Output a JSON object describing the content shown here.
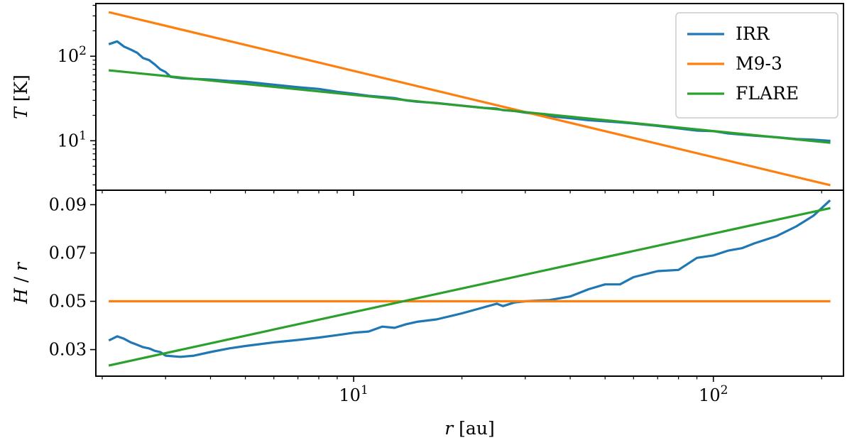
{
  "chart_data": [
    {
      "panel": "top",
      "type": "line",
      "xscale": "log",
      "yscale": "log",
      "xlim": [
        1.92,
        230
      ],
      "ylim": [
        2.6,
        420
      ],
      "ylabel": {
        "symbol": "T",
        "unit": "[K]"
      },
      "xlabel": "",
      "yticks": [
        {
          "value": 10,
          "base": "10",
          "exp": "1"
        },
        {
          "value": 100,
          "base": "10",
          "exp": "2"
        }
      ],
      "grid": false,
      "legend": {
        "placement": "upper-right",
        "entries": [
          "IRR",
          "M9-3",
          "FLARE"
        ]
      },
      "series": [
        {
          "name": "IRR",
          "color": "#1f77b4",
          "x": [
            2.1,
            2.2,
            2.3,
            2.4,
            2.5,
            2.6,
            2.7,
            2.8,
            2.9,
            3.0,
            3.1,
            3.3,
            3.6,
            4.0,
            4.5,
            5.0,
            6.0,
            7.0,
            8.0,
            9.0,
            10.0,
            11.0,
            12.0,
            13.0,
            14.0,
            15.0,
            17.0,
            20.0,
            23.0,
            25.0,
            26.0,
            28.0,
            30.0,
            35.0,
            40.0,
            45.0,
            50.0,
            55.0,
            60.0,
            70.0,
            80.0,
            90.0,
            100.0,
            110.0,
            130.0,
            150.0,
            170.0,
            190.0,
            210.0
          ],
          "y": [
            140,
            150,
            130,
            120,
            110,
            95,
            90,
            80,
            70,
            65,
            57,
            55,
            54,
            53,
            51,
            50,
            46,
            43,
            41,
            38,
            36,
            34,
            33,
            32,
            30,
            29,
            28,
            26,
            24.5,
            24,
            23,
            22.5,
            21.5,
            19.5,
            18.5,
            17.5,
            17,
            16.5,
            16,
            15,
            14,
            13.2,
            13,
            12.2,
            11.5,
            11,
            10.5,
            10.3,
            10
          ]
        },
        {
          "name": "M9-3",
          "color": "#ff7f0e",
          "x": [
            2.1,
            210
          ],
          "y": [
            330,
            3.0
          ]
        },
        {
          "name": "FLARE",
          "color": "#2ca02c",
          "x": [
            2.1,
            210
          ],
          "y": [
            68,
            9.5
          ]
        }
      ]
    },
    {
      "panel": "bottom",
      "type": "line",
      "xscale": "log",
      "yscale": "linear",
      "xlim": [
        1.92,
        230
      ],
      "ylim": [
        0.019,
        0.096
      ],
      "ylabel": {
        "symbol": "H",
        "slash": "/",
        "symbol2": "r"
      },
      "xlabel": {
        "symbol": "r",
        "unit": "[au]"
      },
      "yticks": [
        "0.03",
        "0.05",
        "0.07",
        "0.09"
      ],
      "xticks": [
        {
          "value": 10,
          "base": "10",
          "exp": "1"
        },
        {
          "value": 100,
          "base": "10",
          "exp": "2"
        }
      ],
      "grid": false,
      "series": [
        {
          "name": "IRR",
          "color": "#1f77b4",
          "x": [
            2.1,
            2.2,
            2.3,
            2.4,
            2.5,
            2.6,
            2.7,
            2.8,
            2.9,
            3.0,
            3.3,
            3.6,
            4.0,
            4.5,
            5.0,
            6.0,
            7.0,
            8.0,
            9.0,
            10.0,
            11.0,
            12.0,
            13.0,
            14.0,
            15.0,
            17.0,
            20.0,
            23.0,
            25.0,
            26.0,
            28.0,
            30.0,
            35.0,
            40.0,
            45.0,
            50.0,
            55.0,
            60.0,
            70.0,
            80.0,
            90.0,
            100.0,
            110.0,
            120.0,
            130.0,
            150.0,
            170.0,
            190.0,
            210.0
          ],
          "y": [
            0.034,
            0.0355,
            0.0345,
            0.033,
            0.032,
            0.031,
            0.0305,
            0.0295,
            0.029,
            0.0275,
            0.027,
            0.0275,
            0.029,
            0.0305,
            0.0315,
            0.033,
            0.034,
            0.035,
            0.036,
            0.037,
            0.0375,
            0.0395,
            0.039,
            0.0405,
            0.0415,
            0.0425,
            0.045,
            0.0475,
            0.049,
            0.048,
            0.0495,
            0.05,
            0.0505,
            0.052,
            0.055,
            0.057,
            0.057,
            0.06,
            0.0625,
            0.063,
            0.068,
            0.069,
            0.071,
            0.072,
            0.074,
            0.077,
            0.081,
            0.0855,
            0.0915
          ]
        },
        {
          "name": "M9-3",
          "color": "#ff7f0e",
          "x": [
            2.1,
            210
          ],
          "y": [
            0.05,
            0.05
          ]
        },
        {
          "name": "FLARE",
          "color": "#2ca02c",
          "x": [
            2.1,
            210
          ],
          "y": [
            0.0235,
            0.0885
          ]
        }
      ]
    }
  ]
}
